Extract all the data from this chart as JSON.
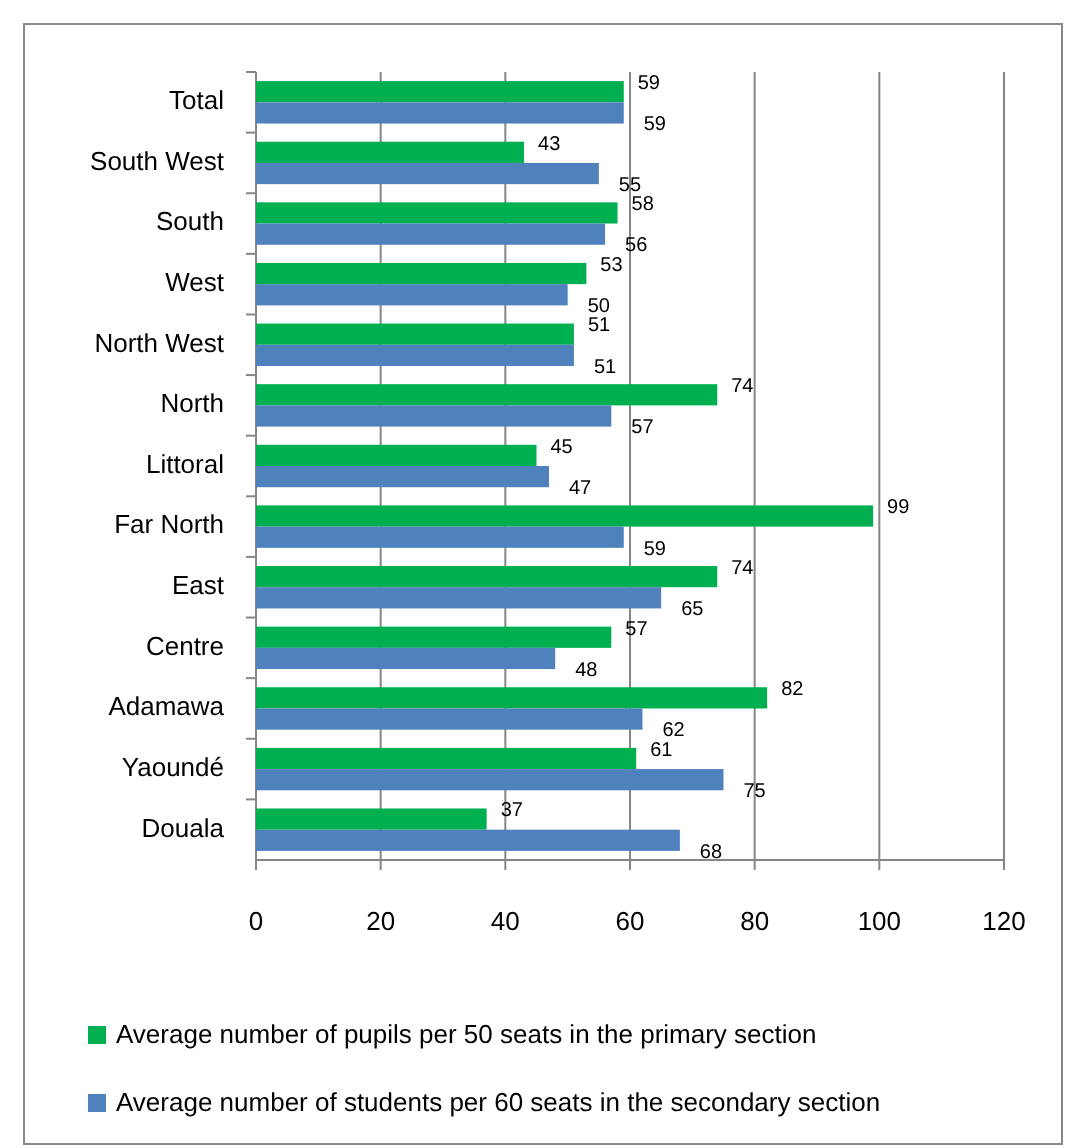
{
  "chart_data": {
    "type": "bar",
    "orientation": "horizontal",
    "categories": [
      "Total",
      "South West",
      "South",
      "West",
      "North West",
      "North",
      "Littoral",
      "Far North",
      "East",
      "Centre",
      "Adamawa",
      "Yaoundé",
      "Douala"
    ],
    "series": [
      {
        "name": "Average number of pupils per 50 seats in the primary section",
        "color": "#00b050",
        "values": [
          59,
          43,
          58,
          53,
          51,
          74,
          45,
          99,
          74,
          57,
          82,
          61,
          37
        ]
      },
      {
        "name": "Average number of students per 60 seats in the secondary section",
        "color": "#4f81bd",
        "values": [
          59,
          55,
          56,
          50,
          51,
          57,
          47,
          59,
          65,
          48,
          62,
          75,
          68
        ]
      }
    ],
    "xlim": [
      0,
      120
    ],
    "xticks": [
      0,
      20,
      40,
      60,
      80,
      100,
      120
    ],
    "grid": "x",
    "legend": "bottom",
    "data_labels": true
  }
}
